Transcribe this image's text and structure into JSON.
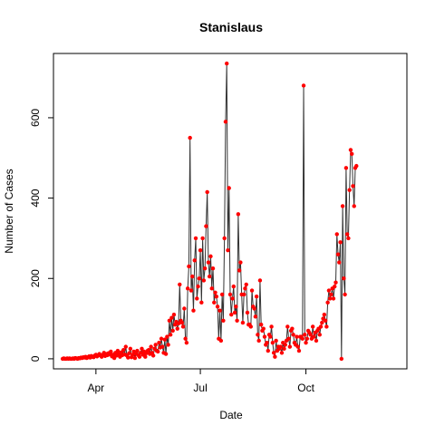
{
  "chart_data": {
    "type": "line",
    "title": "Stanislaus",
    "xlabel": "Date",
    "ylabel": "Number of Cases",
    "x_ticks": [
      "Apr",
      "Jul",
      "Oct"
    ],
    "y_ticks": [
      0,
      200,
      400,
      600
    ],
    "ylim": [
      -25,
      760
    ],
    "xlim": [
      "2020-02-24",
      "2020-12-28"
    ],
    "grid": false,
    "colors": {
      "points": "#ff0000",
      "line": "#333333"
    },
    "series": [
      {
        "start_date": "2020-03-03",
        "values": [
          0,
          1,
          0,
          0,
          1,
          0,
          1,
          0,
          0,
          1,
          0,
          2,
          1,
          0,
          2,
          1,
          3,
          2,
          4,
          3,
          5,
          2,
          4,
          6,
          3,
          7,
          5,
          4,
          8,
          10,
          6,
          9,
          12,
          8,
          5,
          10,
          15,
          7,
          12,
          9,
          14,
          11,
          18,
          6,
          10,
          2,
          15,
          8,
          20,
          12,
          5,
          16,
          9,
          22,
          11,
          30,
          8,
          3,
          14,
          25,
          4,
          10,
          18,
          2,
          12,
          20,
          9,
          5,
          15,
          25,
          10,
          18,
          5,
          14,
          20,
          22,
          12,
          30,
          15,
          8,
          25,
          35,
          20,
          18,
          40,
          28,
          50,
          30,
          15,
          48,
          12,
          55,
          35,
          95,
          60,
          102,
          70,
          110,
          85,
          92,
          75,
          88,
          185,
          95,
          90,
          80,
          125,
          50,
          40,
          175,
          230,
          550,
          170,
          205,
          120,
          245,
          300,
          150,
          180,
          200,
          270,
          140,
          300,
          195,
          225,
          330,
          415,
          240,
          205,
          255,
          175,
          225,
          140,
          165,
          155,
          130,
          50,
          120,
          45,
          160,
          95,
          300,
          590,
          735,
          270,
          425,
          160,
          110,
          150,
          180,
          115,
          130,
          95,
          360,
          220,
          240,
          160,
          90,
          160,
          175,
          185,
          115,
          85,
          85,
          80,
          170,
          130,
          125,
          105,
          155,
          60,
          45,
          195,
          85,
          70,
          75,
          55,
          35,
          40,
          20,
          60,
          55,
          80,
          40,
          15,
          5,
          45,
          20,
          30,
          25,
          30,
          15,
          40,
          25,
          35,
          45,
          80,
          50,
          30,
          70,
          75,
          60,
          40,
          35,
          55,
          30,
          20,
          55,
          55,
          50,
          680,
          60,
          40,
          50,
          70,
          65,
          60,
          50,
          80,
          55,
          65,
          45,
          70,
          75,
          60,
          80,
          90,
          100,
          110,
          95,
          80,
          140,
          170,
          150,
          160,
          175,
          150,
          180,
          190,
          310,
          260,
          240,
          290,
          0,
          380,
          200,
          160,
          475,
          310,
          300,
          420,
          520,
          510,
          430,
          380,
          475,
          480
        ]
      }
    ]
  }
}
